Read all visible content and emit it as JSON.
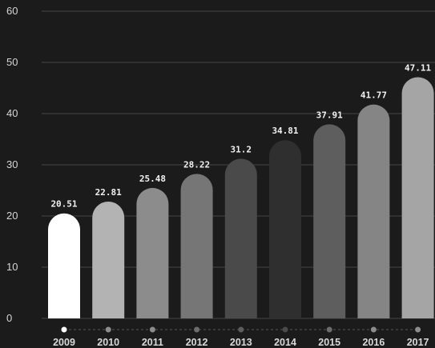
{
  "chart_data": {
    "type": "bar",
    "categories": [
      "2009",
      "2010",
      "2011",
      "2012",
      "2013",
      "2014",
      "2015",
      "2016",
      "2017"
    ],
    "values": [
      20.51,
      22.81,
      25.48,
      28.22,
      31.2,
      34.81,
      37.91,
      41.77,
      47.11
    ],
    "value_labels": [
      "20.51",
      "22.81",
      "25.48",
      "28.22",
      "31.2",
      "34.81",
      "37.91",
      "41.77",
      "47.11"
    ],
    "ylim": [
      0,
      60
    ],
    "yticks": [
      0,
      10,
      20,
      30,
      40,
      50,
      60
    ],
    "grid": true,
    "legend": "none",
    "bar_colors": [
      "#ffffff",
      "#b3b3b3",
      "#8c8c8c",
      "#767676",
      "#4a4a4a",
      "#2f2f2f",
      "#5e5e5e",
      "#858585",
      "#a5a5a5"
    ],
    "timeline_dot_colors": [
      "#ffffff",
      "#8d8d8d",
      "#8d8d8d",
      "#6d6d6d",
      "#5d5d5d",
      "#4a4a4a",
      "#6d6d6d",
      "#8d8d8d",
      "#8d8d8d"
    ],
    "background": "#1b1b1b",
    "grid_color": "#444444",
    "text_color": "#d9d9d9"
  }
}
